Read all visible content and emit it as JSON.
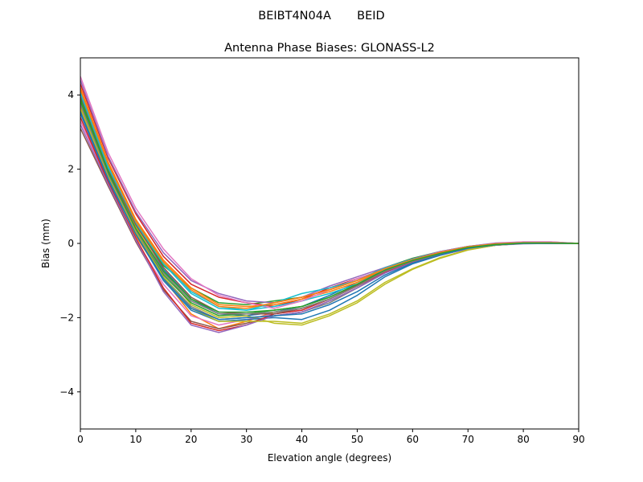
{
  "suptitle": "BEIBT4N04A       BEID",
  "chart_data": {
    "type": "line",
    "title": "Antenna Phase Biases: GLONASS-L2",
    "xlabel": "Elevation angle (degrees)",
    "ylabel": "Bias (mm)",
    "xlim": [
      0,
      90
    ],
    "ylim": [
      -5,
      5
    ],
    "xticks": [
      0,
      10,
      20,
      30,
      40,
      50,
      60,
      70,
      80,
      90
    ],
    "yticks": [
      -4,
      -2,
      0,
      2,
      4
    ],
    "x": [
      0,
      5,
      10,
      15,
      20,
      25,
      30,
      35,
      40,
      45,
      50,
      55,
      60,
      65,
      70,
      75,
      80,
      85,
      90
    ],
    "grid": false,
    "legend": false,
    "series": [
      {
        "color": "#1f77b4",
        "values": [
          4.0,
          2.0,
          0.4,
          -0.7,
          -1.5,
          -1.9,
          -1.95,
          -1.85,
          -1.7,
          -1.4,
          -1.05,
          -0.7,
          -0.45,
          -0.25,
          -0.1,
          -0.02,
          0.02,
          0.02,
          0.0
        ]
      },
      {
        "color": "#ff7f0e",
        "values": [
          3.7,
          1.8,
          0.2,
          -0.95,
          -1.9,
          -2.3,
          -2.1,
          -1.85,
          -1.75,
          -1.5,
          -1.15,
          -0.75,
          -0.5,
          -0.3,
          -0.12,
          -0.03,
          0.01,
          0.01,
          0.0
        ]
      },
      {
        "color": "#2ca02c",
        "values": [
          3.8,
          1.9,
          0.5,
          -0.6,
          -1.2,
          -1.6,
          -1.65,
          -1.55,
          -1.45,
          -1.25,
          -1.0,
          -0.65,
          -0.4,
          -0.22,
          -0.08,
          0.0,
          0.03,
          0.03,
          0.0
        ]
      },
      {
        "color": "#d62728",
        "values": [
          4.3,
          2.3,
          0.8,
          -0.35,
          -1.1,
          -1.45,
          -1.6,
          -1.7,
          -1.5,
          -1.2,
          -0.95,
          -0.7,
          -0.45,
          -0.25,
          -0.1,
          -0.01,
          0.03,
          0.03,
          0.0
        ]
      },
      {
        "color": "#9467bd",
        "values": [
          4.4,
          2.35,
          0.85,
          -0.25,
          -1.0,
          -1.35,
          -1.55,
          -1.6,
          -1.45,
          -1.15,
          -0.9,
          -0.65,
          -0.42,
          -0.22,
          -0.08,
          0.01,
          0.04,
          0.04,
          0.0
        ]
      },
      {
        "color": "#8c564b",
        "values": [
          3.1,
          1.55,
          0.05,
          -1.25,
          -2.1,
          -2.3,
          -2.15,
          -1.95,
          -1.85,
          -1.55,
          -1.2,
          -0.8,
          -0.5,
          -0.3,
          -0.15,
          -0.05,
          0.0,
          0.0,
          0.0
        ]
      },
      {
        "color": "#e377c2",
        "values": [
          3.3,
          1.65,
          0.1,
          -1.1,
          -1.95,
          -2.2,
          -2.05,
          -1.9,
          -1.8,
          -1.5,
          -1.15,
          -0.75,
          -0.48,
          -0.28,
          -0.12,
          -0.04,
          0.01,
          0.01,
          0.0
        ]
      },
      {
        "color": "#7f7f7f",
        "values": [
          3.6,
          1.75,
          0.3,
          -0.9,
          -1.7,
          -2.05,
          -2.0,
          -1.95,
          -1.85,
          -1.6,
          -1.2,
          -0.78,
          -0.5,
          -0.3,
          -0.13,
          -0.04,
          0.0,
          0.01,
          0.0
        ]
      },
      {
        "color": "#bcbd22",
        "values": [
          3.9,
          1.95,
          0.45,
          -0.75,
          -1.65,
          -2.0,
          -1.95,
          -2.15,
          -2.2,
          -1.95,
          -1.6,
          -1.1,
          -0.7,
          -0.4,
          -0.18,
          -0.05,
          0.0,
          0.0,
          0.0
        ]
      },
      {
        "color": "#17becf",
        "values": [
          4.1,
          2.1,
          0.55,
          -0.55,
          -1.35,
          -1.75,
          -1.8,
          -1.7,
          -1.55,
          -1.35,
          -1.1,
          -0.72,
          -0.46,
          -0.26,
          -0.1,
          -0.02,
          0.02,
          0.02,
          0.0
        ]
      },
      {
        "color": "#1f77b4",
        "values": [
          3.5,
          1.7,
          0.25,
          -1.0,
          -1.8,
          -2.1,
          -2.05,
          -2.0,
          -2.05,
          -1.8,
          -1.4,
          -0.9,
          -0.55,
          -0.32,
          -0.14,
          -0.04,
          0.0,
          0.0,
          0.0
        ]
      },
      {
        "color": "#ff7f0e",
        "values": [
          4.2,
          2.2,
          0.65,
          -0.45,
          -1.2,
          -1.65,
          -1.7,
          -1.65,
          -1.5,
          -1.3,
          -1.05,
          -0.68,
          -0.44,
          -0.24,
          -0.09,
          -0.01,
          0.02,
          0.02,
          0.0
        ]
      },
      {
        "color": "#2ca02c",
        "values": [
          3.85,
          1.9,
          0.35,
          -0.85,
          -1.6,
          -1.95,
          -1.9,
          -1.8,
          -1.7,
          -1.45,
          -1.1,
          -0.72,
          -0.47,
          -0.27,
          -0.11,
          -0.03,
          0.01,
          0.01,
          0.0
        ]
      },
      {
        "color": "#d62728",
        "values": [
          3.4,
          1.65,
          0.15,
          -1.2,
          -2.15,
          -2.35,
          -2.2,
          -1.9,
          -1.8,
          -1.5,
          -1.15,
          -0.78,
          -0.5,
          -0.3,
          -0.14,
          -0.05,
          0.0,
          0.0,
          0.0
        ]
      },
      {
        "color": "#9467bd",
        "values": [
          3.2,
          1.6,
          0.1,
          -1.3,
          -2.2,
          -2.4,
          -2.2,
          -1.95,
          -1.85,
          -1.55,
          -1.2,
          -0.8,
          -0.52,
          -0.31,
          -0.15,
          -0.05,
          -0.01,
          0.0,
          0.0
        ]
      },
      {
        "color": "#8c564b",
        "values": [
          3.95,
          2.0,
          0.5,
          -0.65,
          -1.45,
          -1.85,
          -1.9,
          -1.9,
          -1.75,
          -1.5,
          -1.12,
          -0.74,
          -0.47,
          -0.27,
          -0.11,
          -0.03,
          0.01,
          0.01,
          0.0
        ]
      },
      {
        "color": "#e377c2",
        "values": [
          4.5,
          2.45,
          0.95,
          -0.15,
          -0.95,
          -1.4,
          -1.6,
          -1.75,
          -1.55,
          -1.25,
          -0.95,
          -0.7,
          -0.44,
          -0.23,
          -0.09,
          0.0,
          0.04,
          0.04,
          0.0
        ]
      },
      {
        "color": "#7f7f7f",
        "values": [
          3.75,
          1.85,
          0.35,
          -0.8,
          -1.55,
          -1.9,
          -1.9,
          -1.85,
          -1.75,
          -1.5,
          -1.15,
          -0.75,
          -0.48,
          -0.28,
          -0.12,
          -0.03,
          0.01,
          0.01,
          0.0
        ]
      },
      {
        "color": "#bcbd22",
        "values": [
          3.65,
          1.8,
          0.3,
          -0.9,
          -1.75,
          -2.1,
          -2.1,
          -2.1,
          -2.15,
          -1.9,
          -1.55,
          -1.05,
          -0.68,
          -0.38,
          -0.17,
          -0.05,
          0.0,
          0.0,
          0.0
        ]
      },
      {
        "color": "#17becf",
        "values": [
          4.05,
          2.05,
          0.6,
          -0.5,
          -1.3,
          -1.7,
          -1.8,
          -1.6,
          -1.35,
          -1.2,
          -1.0,
          -0.66,
          -0.43,
          -0.24,
          -0.09,
          -0.01,
          0.02,
          0.02,
          0.0
        ]
      },
      {
        "color": "#1f77b4",
        "values": [
          3.55,
          1.75,
          0.25,
          -0.95,
          -1.75,
          -2.05,
          -2.0,
          -1.95,
          -1.9,
          -1.65,
          -1.3,
          -0.85,
          -0.53,
          -0.31,
          -0.13,
          -0.04,
          0.0,
          0.0,
          0.0
        ]
      },
      {
        "color": "#ff7f0e",
        "values": [
          4.15,
          2.15,
          0.6,
          -0.5,
          -1.25,
          -1.7,
          -1.75,
          -1.6,
          -1.45,
          -1.25,
          -1.0,
          -0.68,
          -0.44,
          -0.24,
          -0.09,
          -0.01,
          0.02,
          0.02,
          0.0
        ]
      },
      {
        "color": "#2ca02c",
        "values": [
          3.9,
          1.95,
          0.4,
          -0.75,
          -1.5,
          -1.85,
          -1.85,
          -1.8,
          -1.7,
          -1.45,
          -1.1,
          -0.72,
          -0.46,
          -0.27,
          -0.11,
          -0.03,
          0.01,
          0.01,
          0.0
        ]
      }
    ]
  }
}
